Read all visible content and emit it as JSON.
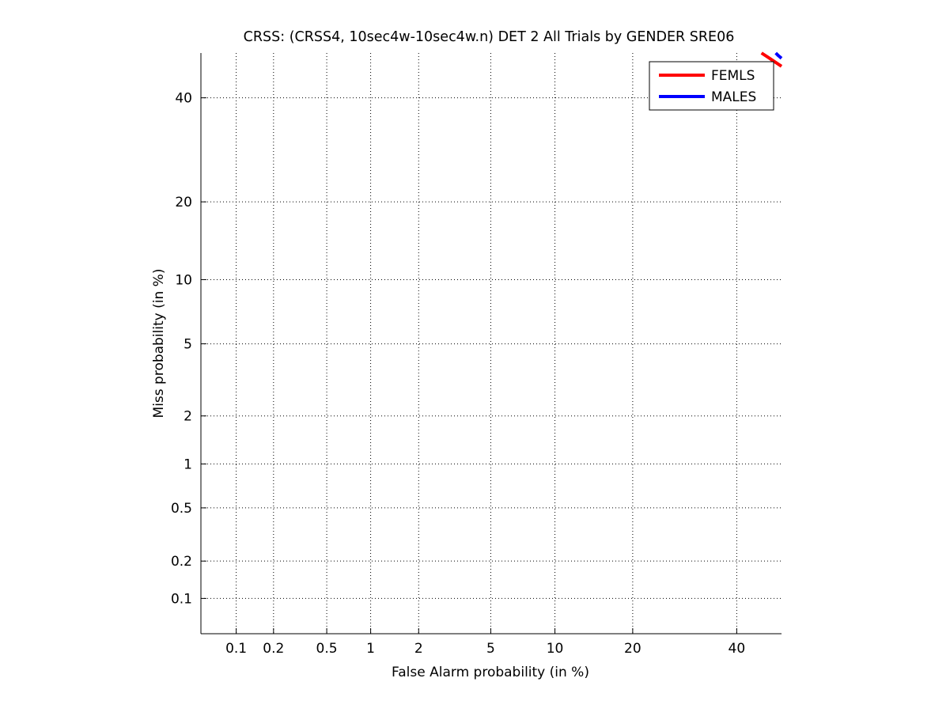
{
  "chart_data": {
    "type": "line",
    "title": "CRSS: (CRSS4, 10sec4w-10sec4w.n) DET 2 All Trials by GENDER SRE06",
    "xlabel": "False Alarm probability (in %)",
    "ylabel": "Miss probability (in %)",
    "x_scale": "normal-deviate",
    "y_scale": "normal-deviate",
    "xlim": [
      0.05,
      50
    ],
    "ylim": [
      0.05,
      50
    ],
    "x_ticks": [
      0.1,
      0.2,
      0.5,
      1,
      2,
      5,
      10,
      20,
      40
    ],
    "y_ticks": [
      0.1,
      0.2,
      0.5,
      1,
      2,
      5,
      10,
      20,
      40
    ],
    "x_tick_labels": [
      "0.1",
      "0.2",
      "0.5",
      "1",
      "2",
      "5",
      "10",
      "20",
      "40"
    ],
    "y_tick_labels": [
      "0.1",
      "0.2",
      "0.5",
      "1",
      "2",
      "5",
      "10",
      "20",
      "40"
    ],
    "grid": true,
    "legend_position": "top-right",
    "series": [
      {
        "name": "FEMLS",
        "color": "#ff0000",
        "x": [
          45.5,
          47.0,
          48.5,
          50.0
        ],
        "y": [
          50.0,
          49.0,
          48.0,
          47.0
        ]
      },
      {
        "name": "MALES",
        "color": "#0000ff",
        "x": [
          48.7,
          49.3,
          50.0
        ],
        "y": [
          50.0,
          49.4,
          48.8
        ]
      }
    ]
  }
}
